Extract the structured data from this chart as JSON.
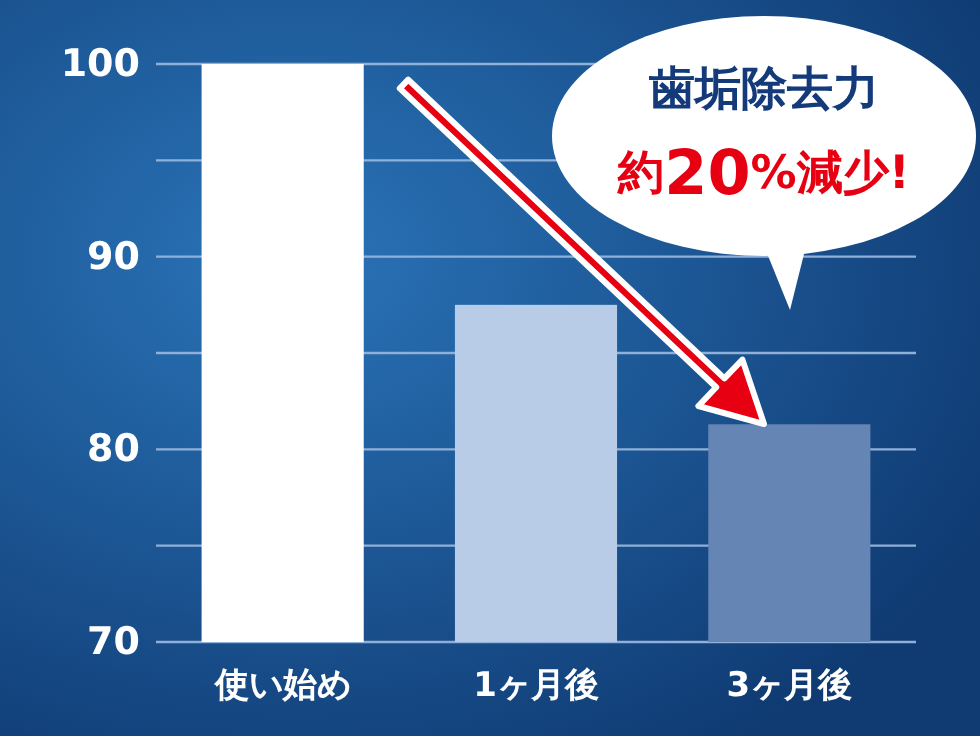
{
  "chart_data": {
    "type": "bar",
    "categories": [
      "使い始め",
      "1ヶ月後",
      "3ヶ月後"
    ],
    "values": [
      100,
      87.5,
      81.3
    ],
    "colors": [
      "#ffffff",
      "#b8cce8",
      "#6585b5"
    ],
    "ylim": [
      70,
      100
    ],
    "yticks": [
      70,
      {
        "value": 75,
        "label": null
      },
      80,
      {
        "value": 85,
        "label": null
      },
      90,
      {
        "value": 95,
        "label": null
      },
      100
    ],
    "grid": "y",
    "annotations": [
      "歯垢除去力",
      "約20%減少!"
    ]
  }
}
